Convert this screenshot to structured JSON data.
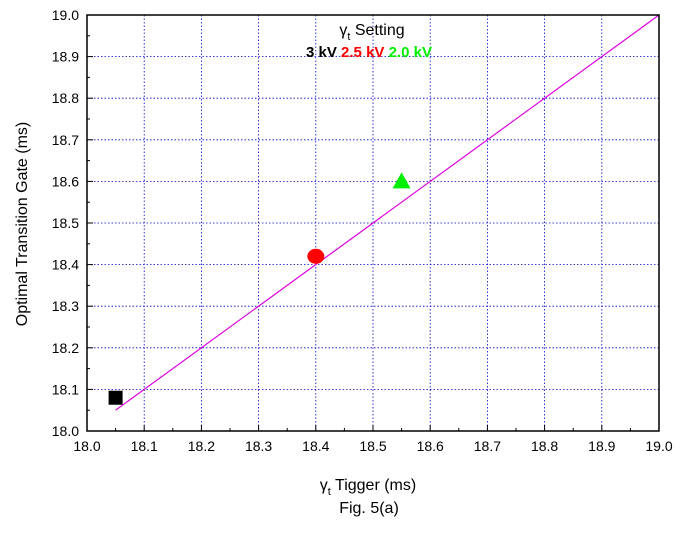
{
  "chart_data": {
    "type": "scatter",
    "title": "",
    "xlabel": {
      "symbol": "γ",
      "subscript": "t",
      "text": " Tigger (ms)"
    },
    "ylabel": "Optimal Transition Gate (ms)",
    "caption": "Fig. 5(a)",
    "xlim": [
      18.0,
      19.0
    ],
    "ylim": [
      18.0,
      19.0
    ],
    "x_ticks": [
      "18.0",
      "18.1",
      "18.2",
      "18.3",
      "18.4",
      "18.5",
      "18.6",
      "18.7",
      "18.8",
      "18.9",
      "19.0"
    ],
    "y_ticks": [
      "18.0",
      "18.1",
      "18.2",
      "18.3",
      "18.4",
      "18.5",
      "18.6",
      "18.7",
      "18.8",
      "18.9",
      "19.0"
    ],
    "grid": true,
    "legend": {
      "title": {
        "symbol": "γ",
        "subscript": "t",
        "text": " Setting"
      },
      "placement": "top-center",
      "entries": [
        {
          "label": "3 kV",
          "color": "#000000"
        },
        {
          "label": "2.5 kV",
          "color": "#ff0000"
        },
        {
          "label": "2.0 kV",
          "color": "#00ee00"
        }
      ]
    },
    "series": [
      {
        "label": "3 kV",
        "marker": "square",
        "color": "#000000",
        "points": [
          {
            "x": 18.05,
            "y": 18.08
          }
        ]
      },
      {
        "label": "2.5 kV",
        "marker": "circle",
        "color": "#ff0000",
        "points": [
          {
            "x": 18.4,
            "y": 18.42
          }
        ]
      },
      {
        "label": "2.0 kV",
        "marker": "triangle",
        "color": "#00ee00",
        "points": [
          {
            "x": 18.55,
            "y": 18.6
          }
        ]
      }
    ],
    "reference_line": {
      "color": "#dd00dd",
      "x": [
        18.05,
        19.0
      ],
      "y": [
        18.05,
        19.0
      ]
    }
  }
}
